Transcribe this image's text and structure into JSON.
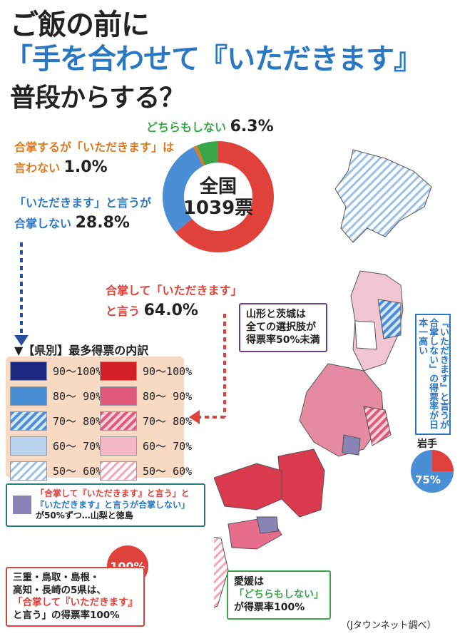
{
  "title": {
    "line1": "ご飯の前に",
    "line2": "「手を合わせて『いただきます』",
    "line3": "普段からする？"
  },
  "donut": {
    "center_line1": "全国",
    "center_line2": "1039票",
    "slices": [
      {
        "label_a": "合掌して「いただきます」",
        "label_b": "と言う",
        "value": "64.0%",
        "share": 64.0,
        "color": "#e0413b"
      },
      {
        "label_a": "「いただきます」と言うが",
        "label_b": "合掌しない",
        "value": "28.8%",
        "share": 28.8,
        "color": "#4a8fd6"
      },
      {
        "label_a": "合掌するが「いただきます」は",
        "label_b": "言わない",
        "value": "1.0%",
        "share": 1.0,
        "color": "#e07a1f"
      },
      {
        "label_a": "どちらもしない",
        "label_b": "",
        "value": "6.3%",
        "share": 6.3,
        "color": "#3aa64a"
      }
    ]
  },
  "legend": {
    "title": "▼【県別】最多得票の内訳",
    "blue": [
      "90～100%",
      "80～ 90%",
      "70～ 80%",
      "60～ 70%",
      "50～ 60%"
    ],
    "red": [
      "90～100%",
      "80～ 90%",
      "70～ 80%",
      "60～ 70%",
      "50～ 60%"
    ]
  },
  "notes": {
    "yamagata": [
      "山形と茨城は",
      "全ての選択肢が",
      "得票率50%未満"
    ],
    "iwate_vertical": "『いただきます』と言うが合掌しない」の得票率が日本一高い",
    "iwate_label": "岩手",
    "iwate_value": "75%",
    "iwate_share": 75,
    "yamanashi": [
      "「合掌して『いただきます』と言う」と",
      "『いただきます』と言うが合掌しない」",
      "が50%ずつ…山梨と徳島"
    ],
    "hundred_badge": "100%",
    "mie": [
      "三重・鳥取・島根・",
      "高知・長崎の5県は、",
      "「合掌して『いただきます』",
      "と言う」の得票率100%"
    ],
    "ehime": [
      "愛媛は",
      "「どちらもしない」",
      "が得票率100%"
    ],
    "credit": "（Jタウンネット調べ）"
  },
  "colors": {
    "red": "#e0413b",
    "blue": "#4a8fd6",
    "orange": "#e07a1f",
    "green": "#3aa64a",
    "purple": "#6b3f8f",
    "legend_bg": "#f7d9c4"
  },
  "chart_data": {
    "type": "pie",
    "title": "ご飯の前に「手を合わせて『いただきます』」普段からする？",
    "categories": [
      "合掌して「いただきます」と言う",
      "「いただきます」と言うが合掌しない",
      "合掌するが「いただきます」は言わない",
      "どちらもしない"
    ],
    "values": [
      64.0,
      28.8,
      1.0,
      6.3
    ],
    "total_votes": "1039票"
  }
}
